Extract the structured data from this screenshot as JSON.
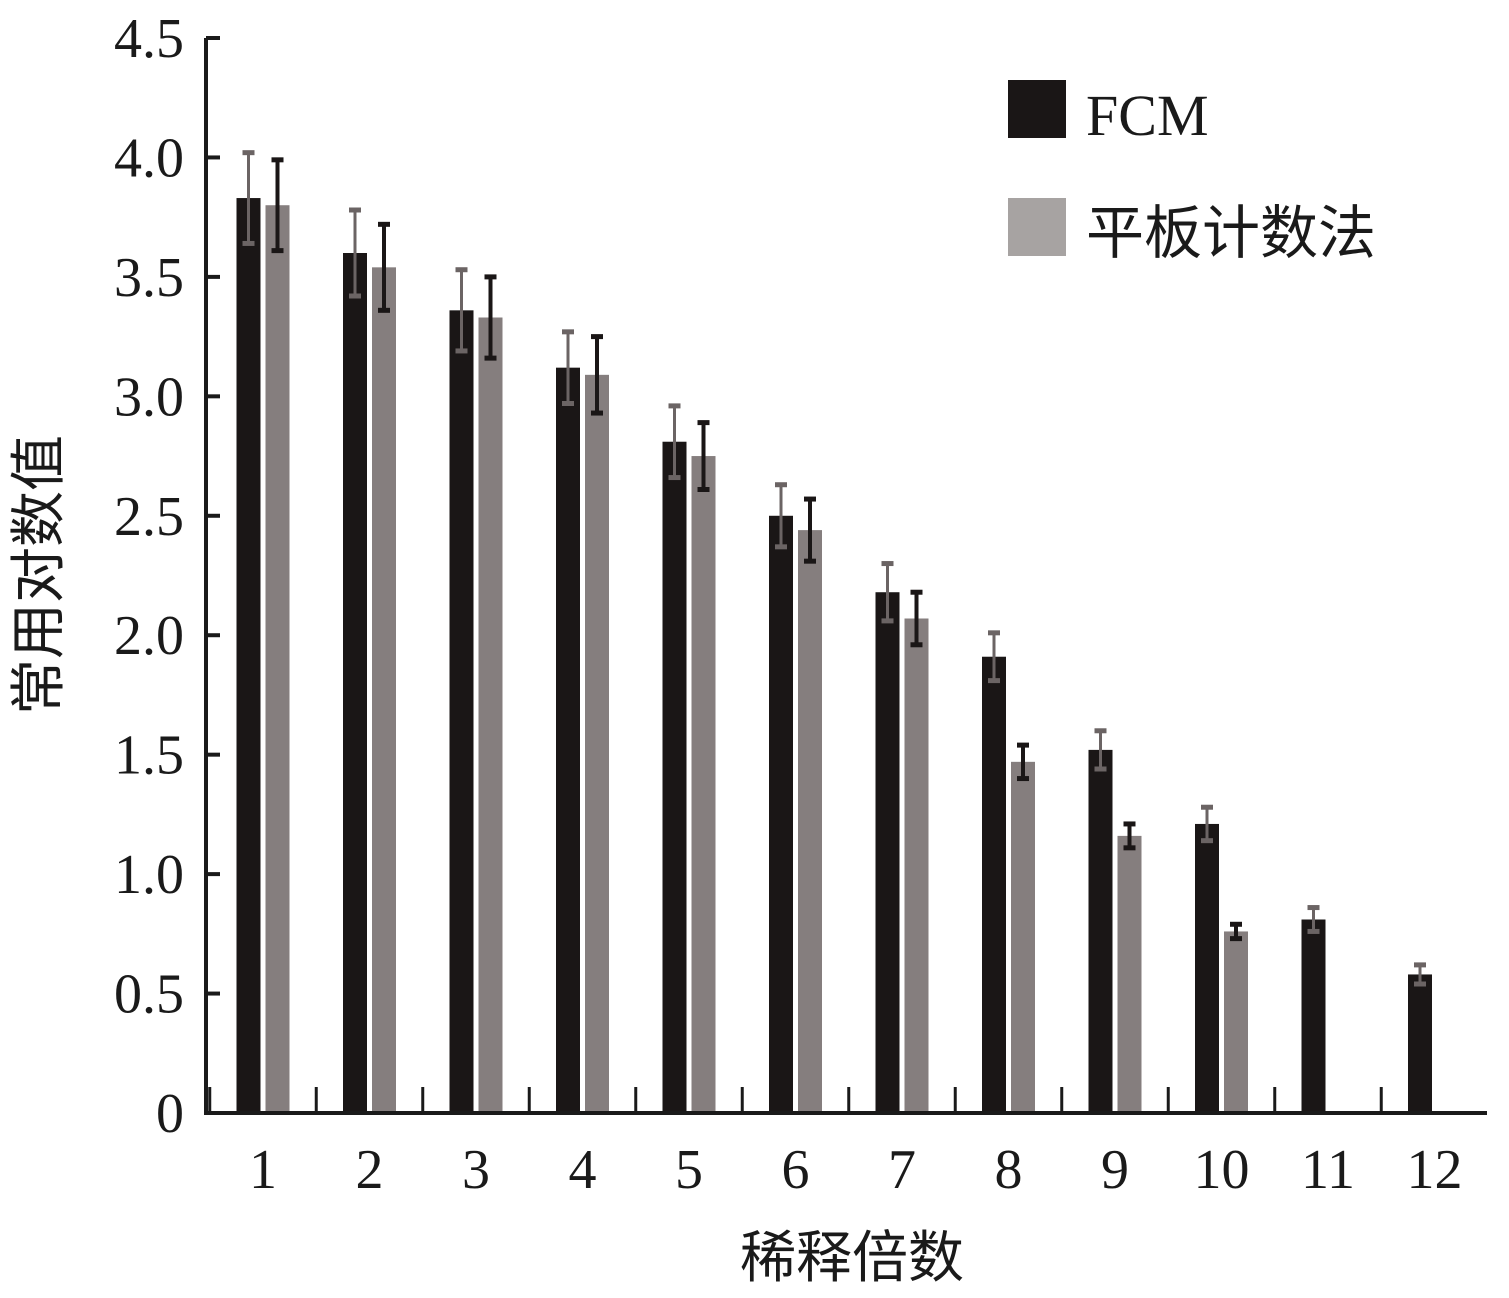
{
  "chart_data": {
    "type": "bar",
    "categories": [
      "1",
      "2",
      "3",
      "4",
      "5",
      "6",
      "7",
      "8",
      "9",
      "10",
      "11",
      "12"
    ],
    "series": [
      {
        "name": "FCM",
        "color": "#1a1616",
        "error_color": "#6b6464",
        "values": [
          3.83,
          3.6,
          3.36,
          3.12,
          2.81,
          2.5,
          2.18,
          1.91,
          1.52,
          1.21,
          0.81,
          0.58
        ],
        "errors": [
          0.19,
          0.18,
          0.17,
          0.15,
          0.15,
          0.13,
          0.12,
          0.1,
          0.08,
          0.07,
          0.05,
          0.04
        ]
      },
      {
        "name": "平板计数法",
        "color": "#857e7e",
        "legend_color": "#a7a3a2",
        "error_color": "#1a1616",
        "values": [
          3.8,
          3.54,
          3.33,
          3.09,
          2.75,
          2.44,
          2.07,
          1.47,
          1.16,
          0.76,
          null,
          null
        ],
        "errors": [
          0.19,
          0.18,
          0.17,
          0.16,
          0.14,
          0.13,
          0.11,
          0.07,
          0.05,
          0.03,
          null,
          null
        ]
      }
    ],
    "xlabel": "稀释倍数",
    "ylabel": "常用对数值",
    "ylim": [
      0,
      4.5
    ],
    "yticks": [
      0,
      0.5,
      1.0,
      1.5,
      2.0,
      2.5,
      3.0,
      3.5,
      4.0,
      4.5
    ],
    "ytick_labels": [
      "0",
      "0.5",
      "1.0",
      "1.5",
      "2.0",
      "2.5",
      "3.0",
      "3.5",
      "4.0",
      "4.5"
    ],
    "grid": false,
    "legend": "top-right"
  }
}
